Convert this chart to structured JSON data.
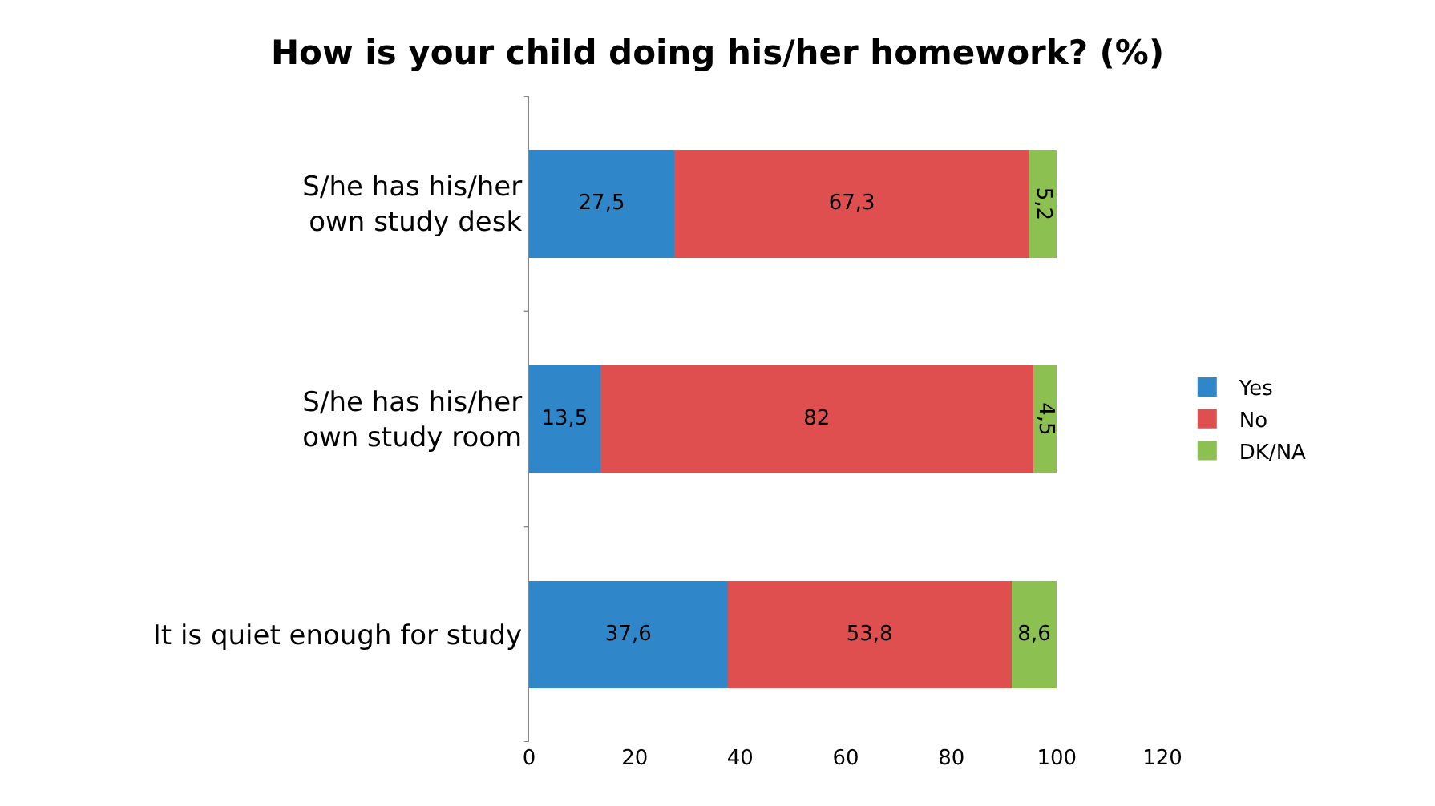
{
  "chart_data": {
    "type": "bar",
    "orientation": "horizontal",
    "stacked": true,
    "title": "How is your child doing his/her homework? (%)",
    "categories": [
      "S/he has his/her own study desk",
      "S/he has his/her own study room",
      "It is quiet enough for study"
    ],
    "series": [
      {
        "name": "Yes",
        "color": "#2f86c9",
        "values": [
          27.5,
          13.5,
          37.6
        ],
        "value_labels": [
          "27,5",
          "13,5",
          "37,6"
        ]
      },
      {
        "name": "No",
        "color": "#e04f4f",
        "values": [
          67.3,
          82,
          53.8
        ],
        "value_labels": [
          "67,3",
          "82",
          "53,8"
        ]
      },
      {
        "name": "DK/NA",
        "color": "#8cc151",
        "values": [
          5.2,
          4.5,
          8.6
        ],
        "value_labels": [
          "5,2",
          "4,5",
          "8,6"
        ]
      }
    ],
    "xlim": [
      0,
      120
    ],
    "xticks": [
      0,
      20,
      40,
      60,
      80,
      100,
      120
    ],
    "legend": "right"
  }
}
